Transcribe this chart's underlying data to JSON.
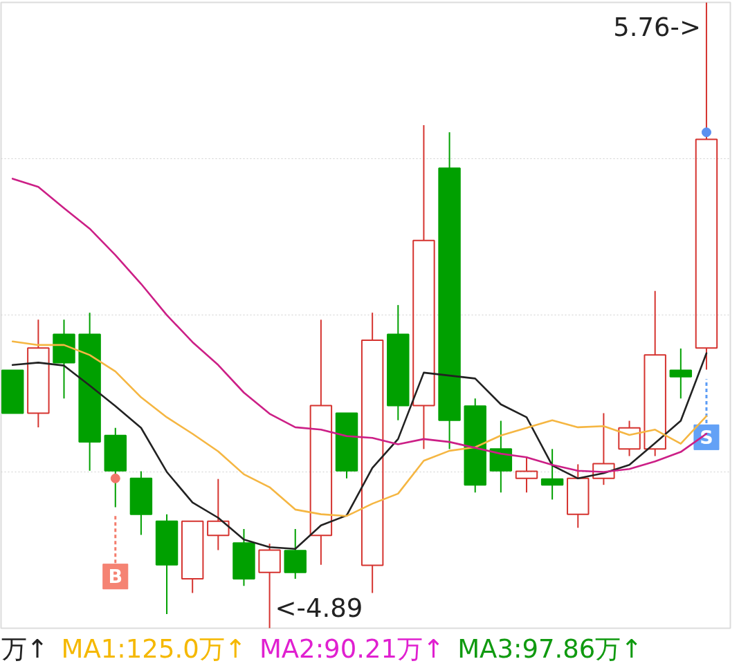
{
  "chart_data": {
    "type": "candlestick",
    "categories": [
      null,
      null,
      null,
      null,
      null,
      null,
      null,
      null,
      null,
      null,
      null,
      null,
      null,
      null,
      null,
      null,
      null,
      null,
      null,
      null,
      null,
      null,
      null,
      null,
      null,
      null,
      null,
      null
    ],
    "ohlc": [
      [
        -0.5,
        -0.5,
        -1.23,
        -1.23
      ],
      [
        -1.23,
        0.36,
        -1.47,
        -0.12
      ],
      [
        0.11,
        0.36,
        -0.98,
        -0.37
      ],
      [
        0.11,
        0.48,
        -2.21,
        -1.72
      ],
      [
        -1.61,
        -1.48,
        -2.83,
        -2.21
      ],
      [
        -2.34,
        -2.22,
        -3.3,
        -2.95
      ],
      [
        -3.07,
        -2.95,
        -4.65,
        -3.81
      ],
      [
        -4.05,
        -3.07,
        -4.29,
        -3.07
      ],
      [
        -3.31,
        -2.35,
        -3.56,
        -3.07
      ],
      [
        -3.44,
        -3.2,
        -4.17,
        -4.05
      ],
      [
        -3.94,
        -3.45,
        -4.89,
        -3.56
      ],
      [
        -3.57,
        -3.2,
        -4.05,
        -3.94
      ],
      [
        -3.31,
        0.36,
        -3.81,
        -1.1
      ],
      [
        -1.23,
        -1.23,
        -2.34,
        -2.21
      ],
      [
        -3.82,
        0.48,
        -4.29,
        0.01
      ],
      [
        0.11,
        0.61,
        -1.35,
        -1.1
      ],
      [
        -1.1,
        3.67,
        -1.84,
        1.71
      ],
      [
        2.94,
        3.55,
        -1.84,
        -1.35
      ],
      [
        -1.11,
        -0.98,
        -2.58,
        -2.45
      ],
      [
        -1.84,
        -1.36,
        -2.58,
        -2.21
      ],
      [
        -2.34,
        -1.98,
        -2.58,
        -2.22
      ],
      [
        -2.35,
        -1.84,
        -2.7,
        -2.45
      ],
      [
        -2.95,
        -2.1,
        -3.18,
        -2.34
      ],
      [
        -2.34,
        -1.23,
        -2.45,
        -2.09
      ],
      [
        -1.84,
        -1.36,
        -1.96,
        -1.48
      ],
      [
        -1.84,
        0.85,
        -1.96,
        -0.24
      ],
      [
        -0.5,
        -0.13,
        -0.98,
        -0.61
      ],
      [
        -0.12,
        5.76,
        -0.49,
        3.43
      ]
    ],
    "colors": [
      "#00a000",
      "#d5332f",
      "#00a000",
      "#00a000",
      "#00a000",
      "#00a000",
      "#00a000",
      "#d5332f",
      "#d5332f",
      "#00a000",
      "#d5332f",
      "#00a000",
      "#d5332f",
      "#00a000",
      "#d5332f",
      "#00a000",
      "#d5332f",
      "#00a000",
      "#00a000",
      "#00a000",
      "#d5332f",
      "#00a000",
      "#d5332f",
      "#d5332f",
      "#d5332f",
      "#d5332f",
      "#00a000",
      "#d5332f"
    ],
    "series": [
      {
        "type": "line",
        "color": "#222222",
        "values": [
          -0.41,
          -0.37,
          -0.42,
          -0.76,
          -1.11,
          -1.48,
          -2.23,
          -2.75,
          -3.01,
          -3.38,
          -3.51,
          -3.54,
          -3.14,
          -2.97,
          -2.16,
          -1.67,
          -0.54,
          -0.59,
          -0.64,
          -1.08,
          -1.3,
          -2.12,
          -2.34,
          -2.25,
          -2.11,
          -1.74,
          -1.36,
          -0.21
        ]
      },
      {
        "type": "line",
        "color": "#f5b642",
        "values": [
          -0.01,
          -0.07,
          -0.07,
          -0.24,
          -0.52,
          -0.96,
          -1.3,
          -1.58,
          -1.88,
          -2.27,
          -2.49,
          -2.87,
          -2.95,
          -2.98,
          -2.77,
          -2.6,
          -2.04,
          -1.87,
          -1.81,
          -1.61,
          -1.48,
          -1.35,
          -1.47,
          -1.45,
          -1.6,
          -1.51,
          -1.75,
          -1.28
        ]
      },
      {
        "type": "line",
        "color": "#cc1f86",
        "values": [
          2.76,
          2.62,
          2.26,
          1.91,
          1.46,
          0.97,
          0.44,
          -0.02,
          -0.41,
          -0.88,
          -1.24,
          -1.47,
          -1.51,
          -1.62,
          -1.65,
          -1.76,
          -1.67,
          -1.72,
          -1.82,
          -1.92,
          -1.98,
          -2.11,
          -2.21,
          -2.23,
          -2.18,
          -2.05,
          -1.89,
          -1.58
        ]
      },
      {
        "type": "scatter",
        "marker": "circle",
        "color": "#f2766a",
        "values": [
          null,
          null,
          null,
          null,
          -2.34,
          null,
          null,
          null,
          null,
          null,
          null,
          null,
          null,
          null,
          null,
          null,
          null,
          null,
          null,
          null,
          null,
          null,
          null,
          null,
          null,
          null,
          null,
          null
        ]
      },
      {
        "type": "scatter",
        "marker": "circle",
        "color": "#5b90f0",
        "values": [
          null,
          null,
          null,
          null,
          null,
          null,
          null,
          null,
          null,
          null,
          null,
          null,
          null,
          null,
          null,
          null,
          null,
          null,
          null,
          null,
          null,
          null,
          null,
          null,
          null,
          null,
          null,
          3.55
        ]
      },
      {
        "type": "scatter",
        "marker": "square",
        "color": "#f47c6c",
        "values": [
          null,
          null,
          null,
          null,
          -4.01,
          null,
          null,
          null,
          null,
          null,
          null,
          null,
          null,
          null,
          null,
          null,
          null,
          null,
          null,
          null,
          null,
          null,
          null,
          null,
          null,
          null,
          null,
          null
        ],
        "errors": [
          null,
          null,
          null,
          null,
          [
            -3.78,
            -2.95
          ],
          null,
          null,
          null,
          null,
          null,
          null,
          null,
          null,
          null,
          null,
          null,
          null,
          null,
          null,
          null,
          null,
          null,
          null,
          null,
          null,
          null,
          null,
          null
        ],
        "value_labels": [
          null,
          null,
          null,
          null,
          "B",
          null,
          null,
          null,
          null,
          null,
          null,
          null,
          null,
          null,
          null,
          null,
          null,
          null,
          null,
          null,
          null,
          null,
          null,
          null,
          null,
          null,
          null,
          null
        ]
      },
      {
        "type": "scatter",
        "marker": "square",
        "color": "#5b9cf5",
        "values": [
          null,
          null,
          null,
          null,
          null,
          null,
          null,
          null,
          null,
          null,
          null,
          null,
          null,
          null,
          null,
          null,
          null,
          null,
          null,
          null,
          null,
          null,
          null,
          null,
          null,
          null,
          null,
          -1.64
        ],
        "errors": [
          null,
          null,
          null,
          null,
          null,
          null,
          null,
          null,
          null,
          null,
          null,
          null,
          null,
          null,
          null,
          null,
          null,
          null,
          null,
          null,
          null,
          null,
          null,
          null,
          null,
          null,
          null,
          [
            -1.4,
            -0.65
          ]
        ],
        "value_labels": [
          null,
          null,
          null,
          null,
          null,
          null,
          null,
          null,
          null,
          null,
          null,
          null,
          null,
          null,
          null,
          null,
          null,
          null,
          null,
          null,
          null,
          null,
          null,
          null,
          null,
          null,
          null,
          "S"
        ]
      }
    ],
    "ylim": [
      -4.89,
      5.76
    ],
    "yticks": [
      {
        "value": -2.23,
        "label": null
      },
      {
        "value": 0.44,
        "label": null
      },
      {
        "value": 3.1,
        "label": null
      }
    ],
    "grid": "y",
    "tick_labels": false,
    "annotations": [
      "5.76->",
      "<-4.89",
      "万↑",
      "MA1:125.0万↑",
      "MA2:90.21万↑",
      "MA3:97.86万↑"
    ]
  }
}
